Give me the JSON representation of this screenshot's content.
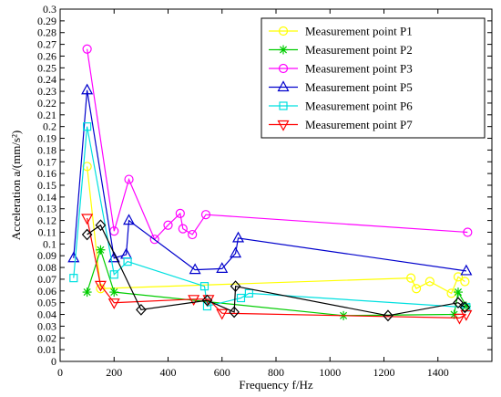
{
  "chart_data": {
    "type": "line",
    "title": "",
    "xlabel": "Frequency f/Hz",
    "ylabel": "Acceleration a/(mm/s²)",
    "xlim": [
      0,
      1600
    ],
    "ylim": [
      0,
      0.3
    ],
    "xticks": [
      0,
      200,
      400,
      600,
      800,
      1000,
      1200,
      1400
    ],
    "yticks": [
      0,
      0.01,
      0.02,
      0.03,
      0.04,
      0.05,
      0.06,
      0.07,
      0.08,
      0.09,
      0.1,
      0.11,
      0.12,
      0.13,
      0.14,
      0.15,
      0.16,
      0.17,
      0.18,
      0.19,
      0.2,
      0.21,
      0.22,
      0.23,
      0.24,
      0.25,
      0.26,
      0.27,
      0.28,
      0.29,
      0.3
    ],
    "grid": false,
    "legend_position": "top-right",
    "series": [
      {
        "name": "Measurement point P1",
        "color": "#ffff00",
        "marker": "circle",
        "points": [
          [
            100,
            0.166
          ],
          [
            150,
            0.062
          ],
          [
            1300,
            0.071
          ],
          [
            1320,
            0.062
          ],
          [
            1370,
            0.068
          ],
          [
            1450,
            0.058
          ],
          [
            1475,
            0.072
          ],
          [
            1500,
            0.068
          ]
        ]
      },
      {
        "name": "Measurement point P2",
        "color": "#00cc00",
        "marker": "asterisk",
        "points": [
          [
            100,
            0.059
          ],
          [
            150,
            0.095
          ],
          [
            200,
            0.059
          ],
          [
            1050,
            0.039
          ],
          [
            1460,
            0.04
          ],
          [
            1475,
            0.059
          ],
          [
            1505,
            0.047
          ]
        ]
      },
      {
        "name": "Measurement point P3",
        "color": "#ff00ff",
        "marker": "circle",
        "points": [
          [
            100,
            0.266
          ],
          [
            200,
            0.111
          ],
          [
            255,
            0.155
          ],
          [
            350,
            0.104
          ],
          [
            400,
            0.116
          ],
          [
            445,
            0.126
          ],
          [
            455,
            0.113
          ],
          [
            490,
            0.108
          ],
          [
            540,
            0.125
          ],
          [
            1510,
            0.11
          ]
        ]
      },
      {
        "name": "Measurement point P5",
        "color": "#0000cc",
        "marker": "triangle",
        "points": [
          [
            50,
            0.088
          ],
          [
            100,
            0.231
          ],
          [
            200,
            0.088
          ],
          [
            245,
            0.091
          ],
          [
            255,
            0.12
          ],
          [
            500,
            0.078
          ],
          [
            600,
            0.079
          ],
          [
            650,
            0.092
          ],
          [
            660,
            0.105
          ],
          [
            1505,
            0.077
          ]
        ]
      },
      {
        "name": "Measurement point P6",
        "color": "#00e0e0",
        "marker": "square",
        "points": [
          [
            50,
            0.071
          ],
          [
            100,
            0.2
          ],
          [
            200,
            0.074
          ],
          [
            250,
            0.085
          ],
          [
            535,
            0.064
          ],
          [
            545,
            0.047
          ],
          [
            670,
            0.054
          ],
          [
            700,
            0.058
          ],
          [
            1505,
            0.046
          ]
        ]
      },
      {
        "name": "Measurement point P7",
        "color": "#ff0000",
        "marker": "triangle-down",
        "points": [
          [
            100,
            0.122
          ],
          [
            150,
            0.065
          ],
          [
            200,
            0.05
          ],
          [
            495,
            0.053
          ],
          [
            550,
            0.053
          ],
          [
            600,
            0.041
          ],
          [
            1480,
            0.037
          ],
          [
            1505,
            0.04
          ]
        ]
      },
      {
        "name": "",
        "color": "#000000",
        "marker": "diamond",
        "points": [
          [
            100,
            0.108
          ],
          [
            150,
            0.116
          ],
          [
            300,
            0.044
          ],
          [
            545,
            0.052
          ],
          [
            645,
            0.042
          ],
          [
            650,
            0.064
          ],
          [
            1215,
            0.039
          ],
          [
            1475,
            0.05
          ],
          [
            1500,
            0.046
          ]
        ]
      }
    ]
  }
}
